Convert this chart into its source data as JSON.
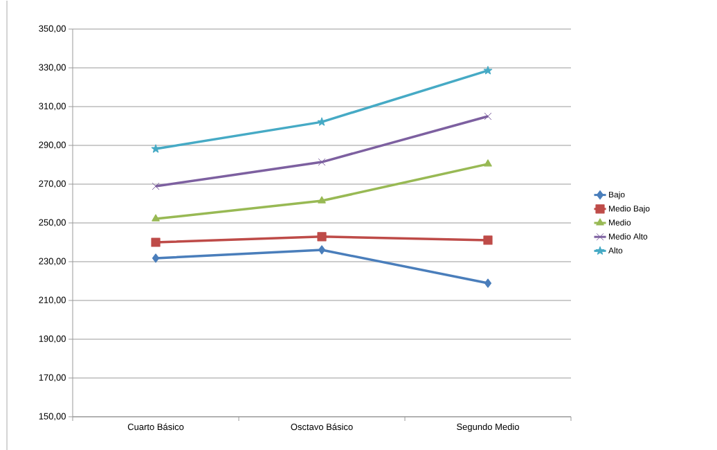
{
  "chart_data": {
    "type": "line",
    "categories": [
      "Cuarto Básico",
      "Osctavo Básico",
      "Segundo Medio"
    ],
    "series": [
      {
        "name": "Bajo",
        "color": "#4a7ebb",
        "marker": "diamond",
        "values": [
          231.8,
          236.1,
          218.9
        ]
      },
      {
        "name": "Medio Bajo",
        "color": "#be4b48",
        "marker": "square",
        "values": [
          240.0,
          242.9,
          241.1
        ]
      },
      {
        "name": "Medio",
        "color": "#98b954",
        "marker": "triangle",
        "values": [
          252.1,
          261.4,
          280.4
        ]
      },
      {
        "name": "Medio Alto",
        "color": "#7d60a0",
        "marker": "cross",
        "values": [
          268.9,
          281.4,
          305.0
        ]
      },
      {
        "name": "Alto",
        "color": "#46aac5",
        "marker": "star",
        "values": [
          288.2,
          302.1,
          328.6
        ]
      }
    ],
    "ylim": [
      150,
      350
    ],
    "yticks": [
      {
        "value": 150,
        "label": "150,00"
      },
      {
        "value": 170,
        "label": "170,00"
      },
      {
        "value": 190,
        "label": "190,00"
      },
      {
        "value": 210,
        "label": "210,00"
      },
      {
        "value": 230,
        "label": "230,00"
      },
      {
        "value": 250,
        "label": "250,00"
      },
      {
        "value": 270,
        "label": "270,00"
      },
      {
        "value": 290,
        "label": "290,00"
      },
      {
        "value": 310,
        "label": "310,00"
      },
      {
        "value": 330,
        "label": "330,00"
      },
      {
        "value": 350,
        "label": "350,00"
      }
    ],
    "grid": "y",
    "legend": "right",
    "line_style": "solid"
  }
}
